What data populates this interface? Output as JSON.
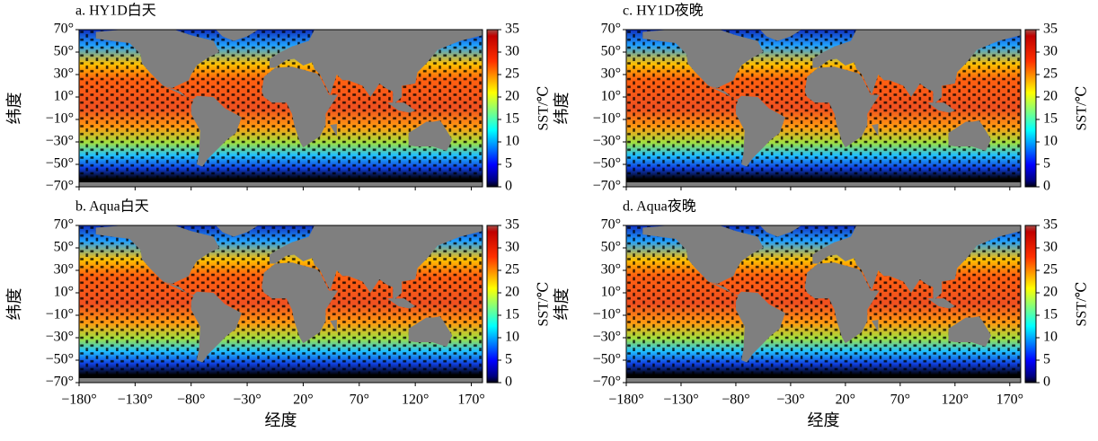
{
  "panels": [
    {
      "title": "a. HY1D白天"
    },
    {
      "title": "c. HY1D夜晚"
    },
    {
      "title": "b. Aqua白天"
    },
    {
      "title": "d. Aqua夜晚"
    }
  ],
  "axes": {
    "x_label": "经度",
    "y_label": "纬度",
    "xlim": [
      -180,
      180
    ],
    "ylim": [
      -70,
      70
    ],
    "xticks": [
      {
        "value": -180,
        "label": "−180°"
      },
      {
        "value": -130,
        "label": "−130°"
      },
      {
        "value": -80,
        "label": "−80°"
      },
      {
        "value": -30,
        "label": "−30°"
      },
      {
        "value": 20,
        "label": "20°"
      },
      {
        "value": 70,
        "label": "70°"
      },
      {
        "value": 120,
        "label": "120°"
      },
      {
        "value": 170,
        "label": "170°"
      }
    ],
    "yticks": [
      {
        "value": 70,
        "label": "70°"
      },
      {
        "value": 50,
        "label": "50°"
      },
      {
        "value": 30,
        "label": "30°"
      },
      {
        "value": 10,
        "label": "10°"
      },
      {
        "value": -10,
        "label": "−10°"
      },
      {
        "value": -30,
        "label": "−30°"
      },
      {
        "value": -50,
        "label": "−50°"
      },
      {
        "value": -70,
        "label": "−70°"
      }
    ]
  },
  "colorbar": {
    "label": "SST/℃",
    "lim": [
      0,
      35
    ],
    "ticks": [
      0,
      5,
      10,
      15,
      20,
      25,
      30,
      35
    ]
  }
}
